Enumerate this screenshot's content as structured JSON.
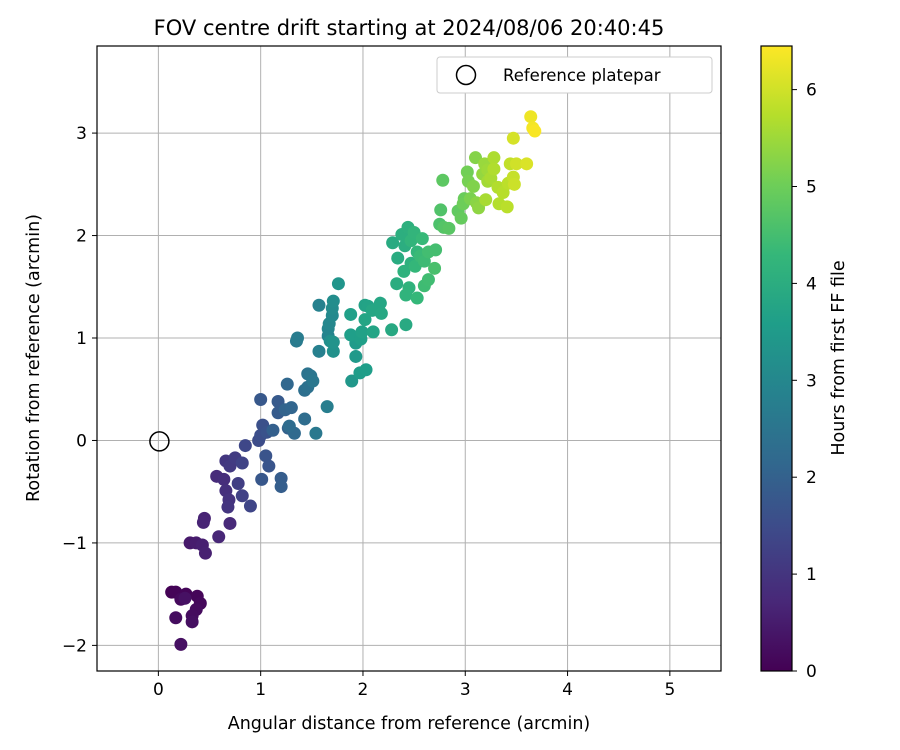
{
  "chart_data": {
    "type": "scatter",
    "title": "FOV centre drift starting at 2024/08/06 20:40:45",
    "xlabel": "Angular distance from reference (arcmin)",
    "ylabel": "Rotation from reference (arcmin)",
    "xlim": [
      -0.6,
      5.5
    ],
    "ylim": [
      -2.25,
      3.85
    ],
    "x_ticks": [
      0,
      1,
      2,
      3,
      4,
      5
    ],
    "x_tick_labels": [
      "0",
      "1",
      "2",
      "3",
      "4",
      "5"
    ],
    "y_ticks": [
      -2,
      -1,
      0,
      1,
      2,
      3
    ],
    "y_tick_labels": [
      "−2",
      "−1",
      "0",
      "1",
      "2",
      "3"
    ],
    "grid": true,
    "legend": {
      "position": "upper-right",
      "entries": [
        "Reference platepar"
      ]
    },
    "reference_point": {
      "name": "Reference platepar",
      "x": 0,
      "y": 0,
      "marker": "hollow-circle"
    },
    "colorbar": {
      "label": "Hours from first FF file",
      "min": 0,
      "max": 6.45,
      "ticks": [
        0,
        1,
        2,
        3,
        4,
        5,
        6
      ],
      "colormap": "viridis"
    },
    "colormap_stops": [
      "#440154",
      "#482878",
      "#3e4989",
      "#31688e",
      "#26828e",
      "#1f9e89",
      "#35b779",
      "#6ece58",
      "#b5de2b",
      "#fde725"
    ],
    "series": [
      {
        "color_by": "hours",
        "points": [
          {
            "x": 0.13,
            "y": -1.48,
            "c": 0.02
          },
          {
            "x": 0.17,
            "y": -1.48,
            "c": 0.05
          },
          {
            "x": 0.27,
            "y": -1.5,
            "c": 0.08
          },
          {
            "x": 0.38,
            "y": -1.52,
            "c": 0.1
          },
          {
            "x": 0.41,
            "y": -1.59,
            "c": 0.13
          },
          {
            "x": 0.22,
            "y": -1.55,
            "c": 0.15
          },
          {
            "x": 0.37,
            "y": -1.65,
            "c": 0.18
          },
          {
            "x": 0.33,
            "y": -1.71,
            "c": 0.2
          },
          {
            "x": 0.17,
            "y": -1.73,
            "c": 0.22
          },
          {
            "x": 0.33,
            "y": -1.77,
            "c": 0.25
          },
          {
            "x": 0.22,
            "y": -1.99,
            "c": 0.28
          },
          {
            "x": 0.26,
            "y": -1.54,
            "c": 0.3
          },
          {
            "x": 0.31,
            "y": -1.0,
            "c": 0.45
          },
          {
            "x": 0.37,
            "y": -1.0,
            "c": 0.5
          },
          {
            "x": 0.43,
            "y": -1.02,
            "c": 0.55
          },
          {
            "x": 0.46,
            "y": -1.1,
            "c": 0.58
          },
          {
            "x": 0.45,
            "y": -0.76,
            "c": 0.62
          },
          {
            "x": 0.44,
            "y": -0.8,
            "c": 0.65
          },
          {
            "x": 0.59,
            "y": -0.94,
            "c": 0.7
          },
          {
            "x": 0.7,
            "y": -0.81,
            "c": 0.75
          },
          {
            "x": 0.57,
            "y": -0.35,
            "c": 0.8
          },
          {
            "x": 0.64,
            "y": -0.38,
            "c": 0.85
          },
          {
            "x": 0.66,
            "y": -0.49,
            "c": 0.9
          },
          {
            "x": 0.69,
            "y": -0.58,
            "c": 0.95
          },
          {
            "x": 0.68,
            "y": -0.65,
            "c": 1.0
          },
          {
            "x": 0.66,
            "y": -0.2,
            "c": 1.05
          },
          {
            "x": 0.7,
            "y": -0.25,
            "c": 1.1
          },
          {
            "x": 0.75,
            "y": -0.17,
            "c": 1.15
          },
          {
            "x": 0.78,
            "y": -0.42,
            "c": 1.2
          },
          {
            "x": 0.82,
            "y": -0.54,
            "c": 1.25
          },
          {
            "x": 0.82,
            "y": -0.22,
            "c": 1.3
          },
          {
            "x": 0.9,
            "y": -0.64,
            "c": 1.35
          },
          {
            "x": 0.85,
            "y": -0.05,
            "c": 1.4
          },
          {
            "x": 0.98,
            "y": 0.0,
            "c": 1.5
          },
          {
            "x": 1.0,
            "y": 0.05,
            "c": 1.55
          },
          {
            "x": 1.02,
            "y": 0.15,
            "c": 1.6
          },
          {
            "x": 1.06,
            "y": 0.08,
            "c": 1.65
          },
          {
            "x": 1.05,
            "y": -0.15,
            "c": 1.68
          },
          {
            "x": 1.08,
            "y": -0.25,
            "c": 1.72
          },
          {
            "x": 1.01,
            "y": -0.38,
            "c": 1.75
          },
          {
            "x": 1.0,
            "y": 0.4,
            "c": 1.78
          },
          {
            "x": 1.17,
            "y": 0.38,
            "c": 1.82
          },
          {
            "x": 1.17,
            "y": 0.27,
            "c": 1.86
          },
          {
            "x": 1.2,
            "y": -0.37,
            "c": 1.9
          },
          {
            "x": 1.2,
            "y": -0.45,
            "c": 1.93
          },
          {
            "x": 1.12,
            "y": 0.1,
            "c": 1.96
          },
          {
            "x": 1.27,
            "y": 0.12,
            "c": 2.0
          },
          {
            "x": 1.24,
            "y": 0.3,
            "c": 2.05
          },
          {
            "x": 1.3,
            "y": 0.32,
            "c": 2.1
          },
          {
            "x": 1.26,
            "y": 0.55,
            "c": 2.15
          },
          {
            "x": 1.33,
            "y": 0.07,
            "c": 2.2
          },
          {
            "x": 1.28,
            "y": 0.14,
            "c": 2.25
          },
          {
            "x": 1.43,
            "y": 0.21,
            "c": 2.3
          },
          {
            "x": 1.43,
            "y": 0.49,
            "c": 2.35
          },
          {
            "x": 1.46,
            "y": 0.52,
            "c": 2.4
          },
          {
            "x": 1.46,
            "y": 0.65,
            "c": 2.45
          },
          {
            "x": 1.49,
            "y": 0.63,
            "c": 2.5
          },
          {
            "x": 1.51,
            "y": 0.58,
            "c": 2.55
          },
          {
            "x": 1.54,
            "y": 0.07,
            "c": 2.6
          },
          {
            "x": 1.35,
            "y": 0.97,
            "c": 2.65
          },
          {
            "x": 1.36,
            "y": 1.0,
            "c": 2.7
          },
          {
            "x": 1.65,
            "y": 0.33,
            "c": 2.75
          },
          {
            "x": 1.57,
            "y": 0.87,
            "c": 2.8
          },
          {
            "x": 1.57,
            "y": 1.32,
            "c": 2.85
          },
          {
            "x": 1.66,
            "y": 1.02,
            "c": 2.9
          },
          {
            "x": 1.66,
            "y": 1.09,
            "c": 2.95
          },
          {
            "x": 1.67,
            "y": 1.14,
            "c": 3.0
          },
          {
            "x": 1.7,
            "y": 1.22,
            "c": 3.05
          },
          {
            "x": 1.7,
            "y": 1.29,
            "c": 3.1
          },
          {
            "x": 1.71,
            "y": 1.36,
            "c": 3.15
          },
          {
            "x": 1.68,
            "y": 0.97,
            "c": 3.2
          },
          {
            "x": 1.71,
            "y": 0.87,
            "c": 3.25
          },
          {
            "x": 1.71,
            "y": 0.96,
            "c": 3.3
          },
          {
            "x": 1.76,
            "y": 1.53,
            "c": 3.35
          },
          {
            "x": 1.89,
            "y": 0.58,
            "c": 3.4
          },
          {
            "x": 1.93,
            "y": 0.82,
            "c": 3.45
          },
          {
            "x": 1.93,
            "y": 0.95,
            "c": 3.5
          },
          {
            "x": 1.97,
            "y": 0.66,
            "c": 3.55
          },
          {
            "x": 2.03,
            "y": 0.69,
            "c": 3.58
          },
          {
            "x": 1.88,
            "y": 1.03,
            "c": 3.6
          },
          {
            "x": 1.98,
            "y": 0.99,
            "c": 3.62
          },
          {
            "x": 1.88,
            "y": 1.23,
            "c": 3.65
          },
          {
            "x": 1.99,
            "y": 1.06,
            "c": 3.68
          },
          {
            "x": 2.02,
            "y": 1.32,
            "c": 3.7
          },
          {
            "x": 2.05,
            "y": 1.31,
            "c": 3.72
          },
          {
            "x": 2.1,
            "y": 1.06,
            "c": 3.75
          },
          {
            "x": 2.02,
            "y": 1.18,
            "c": 3.78
          },
          {
            "x": 2.09,
            "y": 1.27,
            "c": 3.8
          },
          {
            "x": 2.17,
            "y": 1.34,
            "c": 3.82
          },
          {
            "x": 2.18,
            "y": 1.24,
            "c": 3.85
          },
          {
            "x": 2.28,
            "y": 1.08,
            "c": 3.88
          },
          {
            "x": 2.42,
            "y": 1.13,
            "c": 3.9
          },
          {
            "x": 2.29,
            "y": 1.93,
            "c": 3.92
          },
          {
            "x": 2.34,
            "y": 1.78,
            "c": 3.95
          },
          {
            "x": 2.33,
            "y": 1.53,
            "c": 3.98
          },
          {
            "x": 2.41,
            "y": 1.9,
            "c": 4.0
          },
          {
            "x": 2.38,
            "y": 2.01,
            "c": 4.03
          },
          {
            "x": 2.44,
            "y": 2.08,
            "c": 4.06
          },
          {
            "x": 2.47,
            "y": 1.73,
            "c": 4.1
          },
          {
            "x": 2.4,
            "y": 1.65,
            "c": 4.12
          },
          {
            "x": 2.45,
            "y": 1.49,
            "c": 4.15
          },
          {
            "x": 2.42,
            "y": 1.42,
            "c": 4.18
          },
          {
            "x": 2.47,
            "y": 1.95,
            "c": 4.2
          },
          {
            "x": 2.5,
            "y": 2.03,
            "c": 4.22
          },
          {
            "x": 2.53,
            "y": 1.84,
            "c": 4.25
          },
          {
            "x": 2.51,
            "y": 1.7,
            "c": 4.28
          },
          {
            "x": 2.53,
            "y": 1.39,
            "c": 4.3
          },
          {
            "x": 2.58,
            "y": 1.97,
            "c": 4.33
          },
          {
            "x": 2.56,
            "y": 1.8,
            "c": 4.36
          },
          {
            "x": 2.6,
            "y": 1.75,
            "c": 4.4
          },
          {
            "x": 2.6,
            "y": 1.51,
            "c": 4.42
          },
          {
            "x": 2.64,
            "y": 1.57,
            "c": 4.45
          },
          {
            "x": 2.64,
            "y": 1.84,
            "c": 4.48
          },
          {
            "x": 2.71,
            "y": 1.86,
            "c": 4.5
          },
          {
            "x": 2.7,
            "y": 1.68,
            "c": 4.55
          },
          {
            "x": 2.75,
            "y": 2.11,
            "c": 4.6
          },
          {
            "x": 2.76,
            "y": 2.25,
            "c": 4.65
          },
          {
            "x": 2.79,
            "y": 2.08,
            "c": 4.7
          },
          {
            "x": 2.84,
            "y": 2.07,
            "c": 4.75
          },
          {
            "x": 2.78,
            "y": 2.54,
            "c": 4.8
          },
          {
            "x": 2.93,
            "y": 2.24,
            "c": 4.85
          },
          {
            "x": 2.96,
            "y": 2.17,
            "c": 4.9
          },
          {
            "x": 2.99,
            "y": 2.36,
            "c": 4.95
          },
          {
            "x": 2.98,
            "y": 2.31,
            "c": 5.0
          },
          {
            "x": 3.02,
            "y": 2.62,
            "c": 5.05
          },
          {
            "x": 3.03,
            "y": 2.53,
            "c": 5.1
          },
          {
            "x": 3.05,
            "y": 2.36,
            "c": 5.15
          },
          {
            "x": 3.08,
            "y": 2.48,
            "c": 5.2
          },
          {
            "x": 3.1,
            "y": 2.76,
            "c": 5.25
          },
          {
            "x": 3.11,
            "y": 2.32,
            "c": 5.3
          },
          {
            "x": 3.13,
            "y": 2.27,
            "c": 5.35
          },
          {
            "x": 3.17,
            "y": 2.6,
            "c": 5.4
          },
          {
            "x": 3.19,
            "y": 2.7,
            "c": 5.45
          },
          {
            "x": 3.22,
            "y": 2.64,
            "c": 5.5
          },
          {
            "x": 3.22,
            "y": 2.53,
            "c": 5.55
          },
          {
            "x": 3.2,
            "y": 2.35,
            "c": 5.6
          },
          {
            "x": 3.25,
            "y": 2.56,
            "c": 5.62
          },
          {
            "x": 3.28,
            "y": 2.76,
            "c": 5.65
          },
          {
            "x": 3.28,
            "y": 2.65,
            "c": 5.68
          },
          {
            "x": 3.32,
            "y": 2.47,
            "c": 5.7
          },
          {
            "x": 3.33,
            "y": 2.31,
            "c": 5.72
          },
          {
            "x": 3.37,
            "y": 2.42,
            "c": 5.75
          },
          {
            "x": 3.41,
            "y": 2.28,
            "c": 5.78
          },
          {
            "x": 3.42,
            "y": 2.51,
            "c": 5.8
          },
          {
            "x": 3.44,
            "y": 2.7,
            "c": 5.85
          },
          {
            "x": 3.47,
            "y": 2.57,
            "c": 5.9
          },
          {
            "x": 3.48,
            "y": 2.5,
            "c": 5.95
          },
          {
            "x": 3.5,
            "y": 2.7,
            "c": 6.0
          },
          {
            "x": 3.47,
            "y": 2.95,
            "c": 6.05
          },
          {
            "x": 3.6,
            "y": 2.7,
            "c": 6.1
          },
          {
            "x": 3.64,
            "y": 3.16,
            "c": 6.3
          },
          {
            "x": 3.66,
            "y": 3.05,
            "c": 6.35
          },
          {
            "x": 3.68,
            "y": 3.02,
            "c": 6.4
          }
        ]
      }
    ]
  }
}
